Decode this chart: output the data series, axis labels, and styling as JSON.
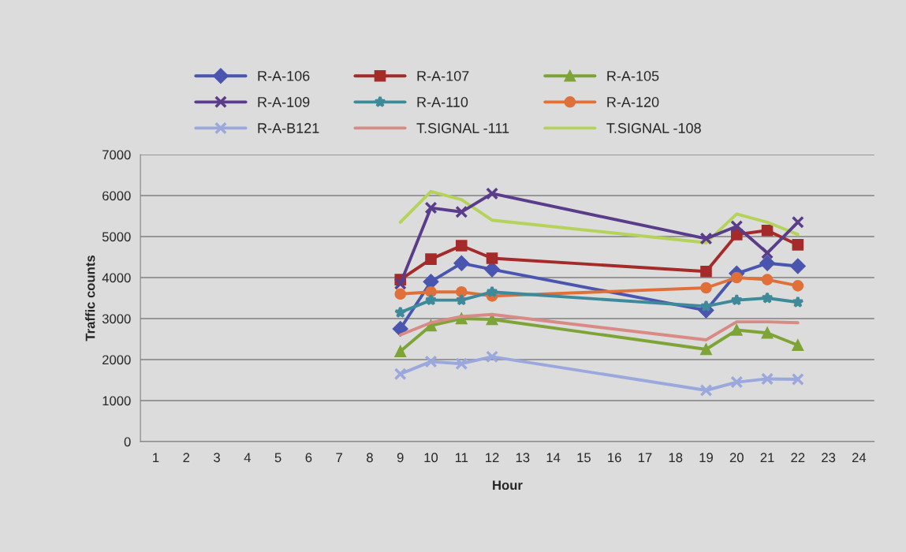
{
  "chart_data": {
    "type": "line",
    "xlabel": "Hour",
    "ylabel": "Traffic counts",
    "categories": [
      "1",
      "2",
      "3",
      "4",
      "5",
      "6",
      "7",
      "8",
      "9",
      "10",
      "11",
      "12",
      "13",
      "14",
      "15",
      "16",
      "17",
      "18",
      "19",
      "20",
      "21",
      "22",
      "23",
      "24"
    ],
    "series": [
      {
        "name": "R-A-106",
        "color": "#4a55b0",
        "marker": "diamond",
        "values": [
          null,
          null,
          null,
          null,
          null,
          null,
          null,
          null,
          2750,
          3900,
          4350,
          4200,
          null,
          null,
          null,
          null,
          null,
          null,
          3200,
          4100,
          4350,
          4280,
          null,
          null
        ]
      },
      {
        "name": "R-A-107",
        "color": "#a52a2a",
        "marker": "square",
        "values": [
          null,
          null,
          null,
          null,
          null,
          null,
          null,
          null,
          3950,
          4450,
          4780,
          4470,
          null,
          null,
          null,
          null,
          null,
          null,
          4150,
          5050,
          5150,
          4800,
          null,
          null
        ]
      },
      {
        "name": "R-A-105",
        "color": "#7ea437",
        "marker": "triangle",
        "values": [
          null,
          null,
          null,
          null,
          null,
          null,
          null,
          null,
          2200,
          2830,
          3000,
          2980,
          null,
          null,
          null,
          null,
          null,
          null,
          2250,
          2720,
          2650,
          2350,
          null,
          null
        ]
      },
      {
        "name": "R-A-109",
        "color": "#5a3d8a",
        "marker": "cross",
        "values": [
          null,
          null,
          null,
          null,
          null,
          null,
          null,
          null,
          3850,
          5700,
          5600,
          6050,
          null,
          null,
          null,
          null,
          null,
          null,
          4950,
          5250,
          4600,
          5350,
          null,
          null
        ]
      },
      {
        "name": "R-A-110",
        "color": "#3f8a9a",
        "marker": "star",
        "values": [
          null,
          null,
          null,
          null,
          null,
          null,
          null,
          null,
          3150,
          3450,
          3450,
          3650,
          null,
          null,
          null,
          null,
          null,
          null,
          3300,
          3450,
          3500,
          3400,
          null,
          null
        ]
      },
      {
        "name": "R-A-120",
        "color": "#e0703a",
        "marker": "circle",
        "values": [
          null,
          null,
          null,
          null,
          null,
          null,
          null,
          null,
          3600,
          3650,
          3650,
          3550,
          null,
          null,
          null,
          null,
          null,
          null,
          3750,
          4000,
          3950,
          3800,
          null,
          null
        ]
      },
      {
        "name": "R-A-B121",
        "color": "#9aa8dd",
        "marker": "cross",
        "values": [
          null,
          null,
          null,
          null,
          null,
          null,
          null,
          null,
          1650,
          1950,
          1900,
          2070,
          null,
          null,
          null,
          null,
          null,
          null,
          1250,
          1450,
          1530,
          1520,
          null,
          null
        ]
      },
      {
        "name": "T.SIGNAL -111",
        "color": "#d98a84",
        "marker": "none",
        "values": [
          null,
          null,
          null,
          null,
          null,
          null,
          null,
          null,
          2600,
          2900,
          3050,
          3100,
          null,
          null,
          null,
          null,
          null,
          null,
          2480,
          2920,
          2920,
          2900,
          null,
          null
        ]
      },
      {
        "name": "T.SIGNAL -108",
        "color": "#b5d35a",
        "marker": "none",
        "values": [
          null,
          null,
          null,
          null,
          null,
          null,
          null,
          null,
          5350,
          6100,
          5900,
          5400,
          null,
          null,
          null,
          null,
          null,
          null,
          4850,
          5550,
          5350,
          5050,
          null,
          null
        ]
      }
    ],
    "ylim": [
      0,
      7000
    ],
    "yticks": [
      0,
      1000,
      2000,
      3000,
      4000,
      5000,
      6000,
      7000
    ],
    "grid": "y",
    "legend": "top",
    "line_style": "solid"
  }
}
